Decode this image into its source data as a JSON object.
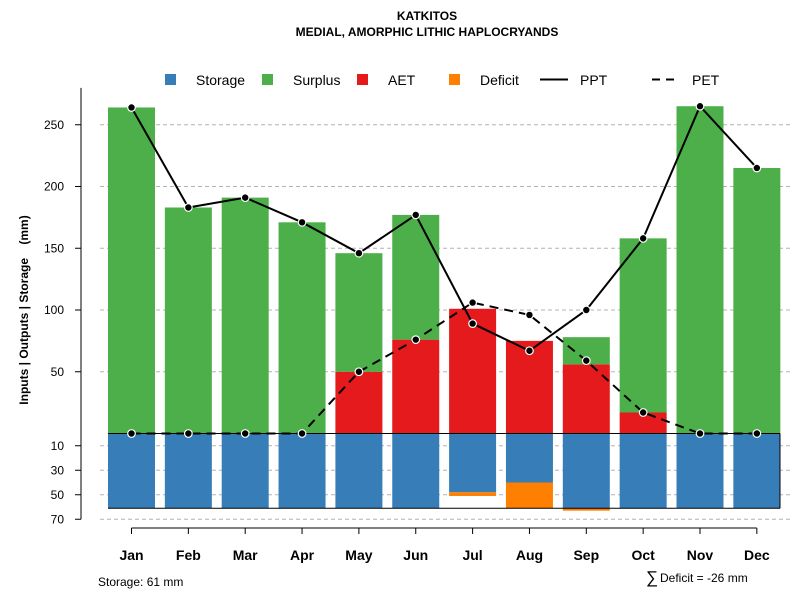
{
  "chart_data": {
    "type": "bar",
    "title": "KATKITOS",
    "subtitle": "MEDIAL, AMORPHIC LITHIC HAPLOCRYANDS",
    "ylabel": "Inputs | Outputs | Storage    (mm)",
    "ylim_upper": [
      0,
      275
    ],
    "ylim_lower": [
      0,
      70
    ],
    "upper_ticks": [
      50,
      100,
      150,
      200,
      250
    ],
    "lower_ticks": [
      10,
      30,
      50,
      70
    ],
    "legend": [
      {
        "label": "Storage",
        "kind": "box",
        "color": "#377eb8"
      },
      {
        "label": "Surplus",
        "kind": "box",
        "color": "#4daf4a"
      },
      {
        "label": "AET",
        "kind": "box",
        "color": "#e41a1c"
      },
      {
        "label": "Deficit",
        "kind": "box",
        "color": "#ff7f00"
      },
      {
        "label": "PPT",
        "kind": "solid",
        "color": "#000000"
      },
      {
        "label": "PET",
        "kind": "dashed",
        "color": "#000000"
      }
    ],
    "categories": [
      "Jan",
      "Feb",
      "Mar",
      "Apr",
      "May",
      "Jun",
      "Jul",
      "Aug",
      "Sep",
      "Oct",
      "Nov",
      "Dec"
    ],
    "series": [
      {
        "name": "AET",
        "values": [
          0,
          0,
          0,
          0,
          50,
          76,
          101,
          75,
          56,
          17,
          0,
          0
        ]
      },
      {
        "name": "Surplus",
        "values": [
          264,
          183,
          191,
          171,
          96,
          101,
          0,
          0,
          22,
          141,
          265,
          215
        ]
      },
      {
        "name": "Storage",
        "values": [
          61,
          61,
          61,
          61,
          61,
          61,
          48,
          40,
          61,
          61,
          61,
          61
        ]
      },
      {
        "name": "Deficit",
        "values": [
          0,
          0,
          0,
          0,
          0,
          0,
          3,
          21,
          2,
          0,
          0,
          0
        ]
      },
      {
        "name": "PPT",
        "values": [
          264,
          183,
          191,
          171,
          146,
          177,
          89,
          67,
          100,
          158,
          265,
          215
        ]
      },
      {
        "name": "PET",
        "values": [
          0,
          0,
          0,
          0,
          50,
          76,
          106,
          96,
          59,
          17,
          0,
          0
        ]
      }
    ],
    "notes": {
      "storage": "Storage: 61 mm",
      "deficit_symbol": "∑",
      "deficit": "Deficit = -26 mm"
    }
  }
}
